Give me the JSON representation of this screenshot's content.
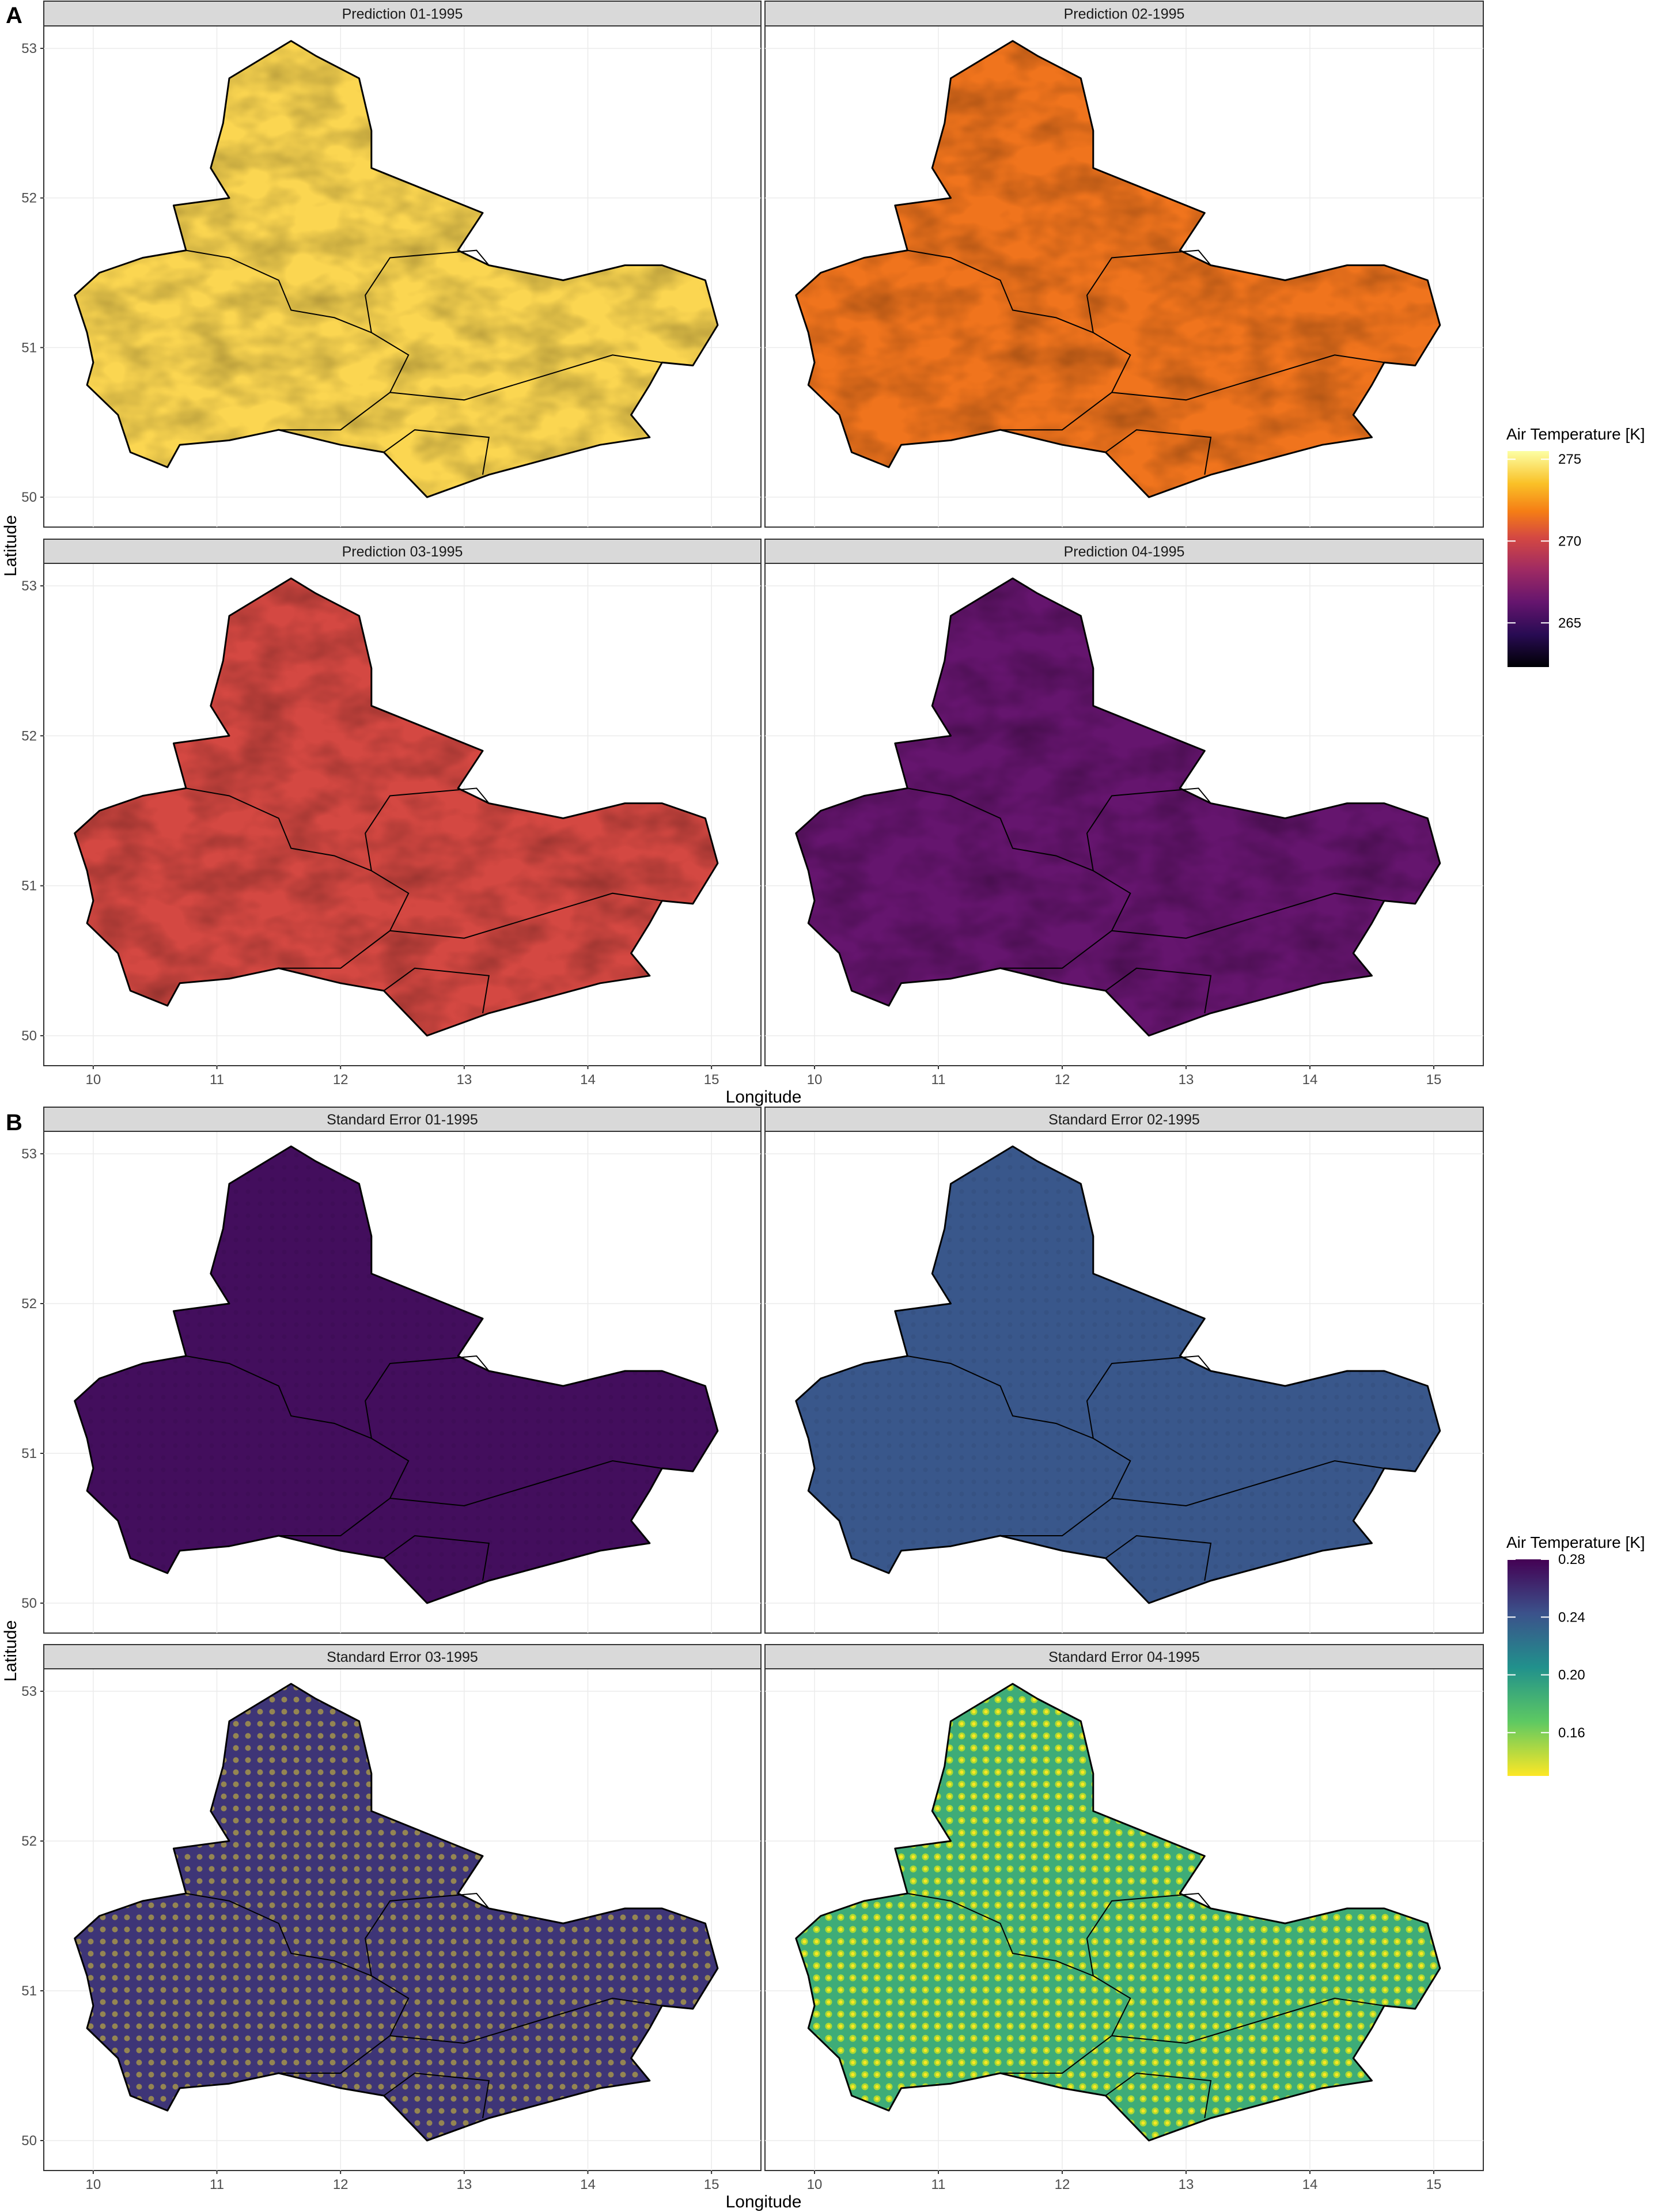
{
  "figure": {
    "sections": [
      {
        "letter": "A",
        "axis": {
          "xlabel": "Longitude",
          "ylabel": "Latitude"
        },
        "legend": {
          "title": "Air Temperature [K]",
          "scale": "inferno",
          "range": [
            262.3,
            275.5
          ],
          "ticks": [
            "275",
            "270",
            "265"
          ],
          "tick_values": [
            275,
            270,
            265
          ]
        },
        "facets": [
          {
            "title": "Prediction 01-1995",
            "level": 0.9,
            "texture": "terrain"
          },
          {
            "title": "Prediction 02-1995",
            "level": 0.7,
            "texture": "terrain"
          },
          {
            "title": "Prediction 03-1995",
            "level": 0.6,
            "texture": "terrain"
          },
          {
            "title": "Prediction 04-1995",
            "level": 0.3,
            "texture": "terrain"
          }
        ]
      },
      {
        "letter": "B",
        "axis": {
          "xlabel": "Longitude",
          "ylabel": "Latitude"
        },
        "legend": {
          "title": "Air Temperature [K]",
          "scale": "viridis",
          "range": [
            0.13,
            0.28
          ],
          "ticks": [
            "0.28",
            "0.24",
            "0.20",
            "0.16"
          ],
          "tick_values": [
            0.28,
            0.24,
            0.2,
            0.16
          ]
        },
        "facets": [
          {
            "title": "Standard Error 01-1995",
            "level": 0.96,
            "texture": "dots-faint"
          },
          {
            "title": "Standard Error 02-1995",
            "level": 0.73,
            "texture": "dots-faint"
          },
          {
            "title": "Standard Error 03-1995",
            "level": 0.84,
            "texture": "dots"
          },
          {
            "title": "Standard Error 04-1995",
            "level": 0.38,
            "texture": "dots-strong"
          }
        ]
      }
    ],
    "x_ticks": [
      "10",
      "11",
      "12",
      "13",
      "14",
      "15"
    ],
    "y_ticks": [
      "53",
      "52",
      "51",
      "50"
    ]
  }
}
